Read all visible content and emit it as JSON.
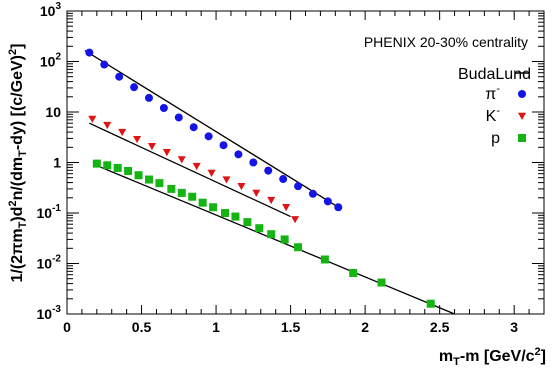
{
  "chart_data": {
    "type": "scatter",
    "title": "",
    "annotation": "PHENIX 20-30% centrality",
    "xlabel": "m_T-m [GeV/c^2]",
    "ylabel": "1/(2πm_T)d^2n/(dm_T-dy) [(c/GeV)^2]",
    "xlim": [
      0,
      3.2
    ],
    "ylim": [
      0.001,
      1000
    ],
    "yscale": "log",
    "grid": false,
    "legend_position": "top-right",
    "x_ticks": [
      0,
      0.5,
      1,
      1.5,
      2,
      2.5,
      3
    ],
    "x_tick_labels": [
      "0",
      "0.5",
      "1",
      "1.5",
      "2",
      "2.5",
      "3"
    ],
    "y_ticks": [
      0.001,
      0.01,
      0.1,
      1,
      10,
      100,
      1000
    ],
    "y_tick_labels": [
      {
        "base": "10",
        "exp": "-3"
      },
      {
        "base": "10",
        "exp": "-2"
      },
      {
        "base": "10",
        "exp": "-1"
      },
      {
        "base": "1",
        "exp": ""
      },
      {
        "base": "10",
        "exp": ""
      },
      {
        "base": "10",
        "exp": "2"
      },
      {
        "base": "10",
        "exp": "3"
      }
    ],
    "fit_label": "BudaLund",
    "series": [
      {
        "name": "π-",
        "legend_base": "π",
        "legend_sup": "-",
        "marker": "circle",
        "color": "#1414e6",
        "x": [
          0.15,
          0.25,
          0.35,
          0.45,
          0.55,
          0.65,
          0.75,
          0.85,
          0.95,
          1.05,
          1.15,
          1.25,
          1.35,
          1.45,
          1.55,
          1.65,
          1.75,
          1.82
        ],
        "y": [
          150,
          87,
          50,
          31,
          19,
          12,
          7.8,
          5.0,
          3.3,
          2.2,
          1.45,
          1.0,
          0.69,
          0.47,
          0.34,
          0.24,
          0.17,
          0.13
        ],
        "fit_x": [
          0.12,
          1.83
        ],
        "fit_y": [
          165,
          0.125
        ]
      },
      {
        "name": "K-",
        "legend_base": "K",
        "legend_sup": "-",
        "marker": "triangle-down",
        "color": "#e01414",
        "x": [
          0.17,
          0.27,
          0.37,
          0.47,
          0.57,
          0.67,
          0.77,
          0.87,
          0.97,
          1.07,
          1.17,
          1.27,
          1.37,
          1.47,
          1.53
        ],
        "y": [
          7.3,
          5.5,
          4.0,
          2.9,
          2.1,
          1.6,
          1.15,
          0.85,
          0.62,
          0.46,
          0.34,
          0.25,
          0.18,
          0.13,
          0.075
        ],
        "fit_x": [
          0.15,
          1.5
        ],
        "fit_y": [
          6.0,
          0.085
        ]
      },
      {
        "name": "p",
        "legend_base": "p",
        "legend_sup": "",
        "marker": "square",
        "color": "#14b414",
        "x": [
          0.2,
          0.27,
          0.34,
          0.41,
          0.48,
          0.55,
          0.62,
          0.7,
          0.77,
          0.84,
          0.91,
          0.98,
          1.06,
          1.13,
          1.21,
          1.29,
          1.37,
          1.46,
          1.55,
          1.73,
          1.92,
          2.11,
          2.44
        ],
        "y": [
          0.95,
          0.88,
          0.78,
          0.68,
          0.56,
          0.46,
          0.39,
          0.3,
          0.25,
          0.21,
          0.16,
          0.13,
          0.1,
          0.085,
          0.066,
          0.05,
          0.038,
          0.03,
          0.021,
          0.012,
          0.0065,
          0.0042,
          0.0016
        ],
        "fit_x": [
          0.18,
          2.6
        ],
        "fit_y": [
          0.92,
          0.001
        ]
      }
    ]
  }
}
